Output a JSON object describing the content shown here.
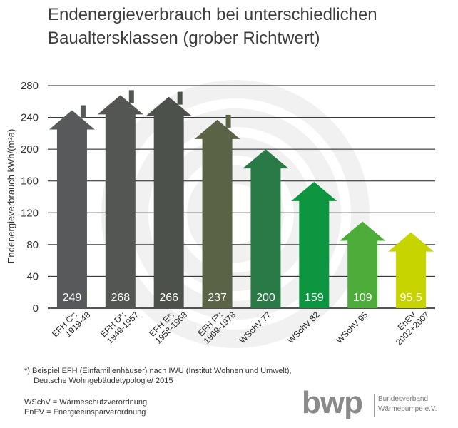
{
  "chart_data": {
    "type": "bar",
    "title_line1": "Endenergieverbrauch bei unterschiedlichen",
    "title_line2": "Baualtersklassen (grober Richtwert)",
    "ylabel": "Endenergieverbrauch kWh/(m²a)",
    "ylim": [
      0,
      280
    ],
    "yticks": [
      "0",
      "40",
      "80",
      "120",
      "160",
      "200",
      "240",
      "280"
    ],
    "grid": true,
    "categories": [
      {
        "line1": "EFH C*:",
        "line2": "1919-48",
        "chimney": true
      },
      {
        "line1": "EFH D*:",
        "line2": "1949-1957",
        "chimney": true
      },
      {
        "line1": "EFH E*:",
        "line2": "1958-1968",
        "chimney": true
      },
      {
        "line1": "EFH F*:",
        "line2": "1969-1978",
        "chimney": true
      },
      {
        "line1": "WSchV 77",
        "line2": "",
        "chimney": false
      },
      {
        "line1": "WSchV 82",
        "line2": "",
        "chimney": false
      },
      {
        "line1": "WSchV 95",
        "line2": "",
        "chimney": false
      },
      {
        "line1": "EnEV",
        "line2": "2002+2007",
        "chimney": false
      }
    ],
    "values": [
      249,
      268,
      266,
      237,
      200,
      159,
      109,
      95.5
    ],
    "value_labels": [
      "249",
      "268",
      "266",
      "237",
      "200",
      "159",
      "109",
      "95,5"
    ],
    "colors": [
      "#58595b",
      "#535653",
      "#4c524b",
      "#5a6345",
      "#2a7a48",
      "#0e9540",
      "#4dac3a",
      "#c8d400"
    ],
    "value_label_color": "#ffffff",
    "background_symbol_color": "#f1f1f1"
  },
  "notes": {
    "footnote_line1": "*) Beispiel EFH (Einfamilienhäuser) nach IWU (Institut Wohnen und Umwelt),",
    "footnote_line2": "Deutsche Wohngebäudetypologie/ 2015",
    "abbr_wschv": "WSchV = Wärmeschutzverordnung",
    "abbr_enev": "EnEV = Energieeinsparverordnung"
  },
  "logo": {
    "text": "bwp",
    "line1": "Bundesverband",
    "line2": "Wärmepumpe e.V."
  }
}
